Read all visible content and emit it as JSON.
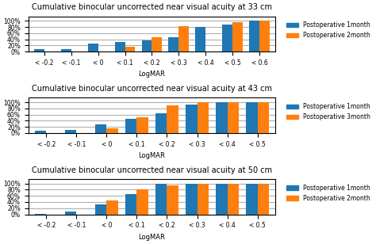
{
  "chart_data": [
    {
      "type": "bar",
      "title": "Cumulative binocular uncorrected near visual acuity at 33 cm",
      "xlabel": "LogMAR",
      "categories": [
        "< -0.2",
        "< -0.1",
        "< 0",
        "< 0.1",
        "< 0.2",
        "< 0.3",
        "< 0.4",
        "< 0.5",
        "< 0.6"
      ],
      "series": [
        {
          "name": "Postoperative 1month",
          "values": [
            7,
            9,
            25,
            32,
            37,
            48,
            80,
            87,
            100
          ]
        },
        {
          "name": "Postoperative 2month",
          "values": [
            0,
            0,
            0,
            15,
            48,
            82,
            0,
            95,
            100
          ]
        }
      ],
      "ylim": [
        0,
        115
      ],
      "yticks": [
        {
          "value": 0,
          "label": "0%"
        },
        {
          "value": 20,
          "label": "20%"
        },
        {
          "value": 40,
          "label": "40%"
        },
        {
          "value": 60,
          "label": "60%"
        },
        {
          "value": 80,
          "label": "80%"
        },
        {
          "value": 100,
          "label": "100%"
        }
      ],
      "grid": true,
      "legend": "upper left"
    },
    {
      "type": "bar",
      "title": "Cumulative binocular uncorrected near visual acuity at 43 cm",
      "xlabel": "LogMAR",
      "categories": [
        "< -0.2",
        "< -0.1",
        "< 0",
        "< 0.1",
        "< 0.2",
        "< 0.3",
        "< 0.4",
        "< 0.5"
      ],
      "series": [
        {
          "name": "Postoperative 1month",
          "values": [
            7,
            9,
            27,
            46,
            65,
            93,
            100,
            100
          ]
        },
        {
          "name": "Postoperative 3month",
          "values": [
            0,
            0,
            15,
            52,
            90,
            99,
            100,
            100
          ]
        }
      ],
      "ylim": [
        0,
        115
      ],
      "yticks": [
        {
          "value": 0,
          "label": "0%"
        },
        {
          "value": 20,
          "label": "20%"
        },
        {
          "value": 40,
          "label": "40%"
        },
        {
          "value": 60,
          "label": "60%"
        },
        {
          "value": 80,
          "label": "80%"
        },
        {
          "value": 100,
          "label": "100%"
        }
      ],
      "grid": true,
      "legend": "upper left"
    },
    {
      "type": "bar",
      "title": "Cumulative binocular uncorrected near visual acuity at 50 cm",
      "xlabel": "LogMAR",
      "categories": [
        "< -0.2",
        "< -0.1",
        "< 0",
        "< 0.1",
        "< 0.2",
        "< 0.3",
        "< 0.4",
        "< 0.5"
      ],
      "series": [
        {
          "name": "Postoperative 1month",
          "values": [
            2,
            9,
            33,
            65,
            100,
            100,
            100,
            100
          ]
        },
        {
          "name": "Postoperative 2month",
          "values": [
            0,
            0,
            45,
            80,
            93,
            100,
            100,
            100
          ]
        }
      ],
      "ylim": [
        0,
        115
      ],
      "yticks": [
        {
          "value": 0,
          "label": "0%"
        },
        {
          "value": 20,
          "label": "20%"
        },
        {
          "value": 40,
          "label": "40%"
        },
        {
          "value": 60,
          "label": "60%"
        },
        {
          "value": 80,
          "label": "80%"
        },
        {
          "value": 100,
          "label": "100%"
        }
      ],
      "grid": true,
      "legend": "upper left"
    }
  ]
}
